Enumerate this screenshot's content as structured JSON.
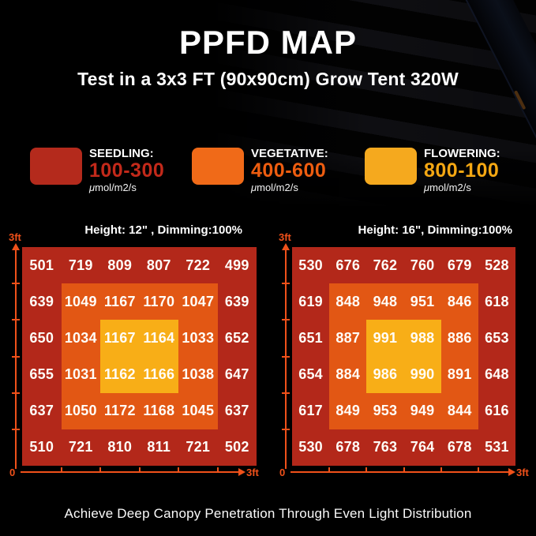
{
  "header": {
    "title": "PPFD MAP",
    "subtitle": "Test in a 3x3 FT (90x90cm) Grow Tent 320W"
  },
  "legend": {
    "items": [
      {
        "name": "SEEDLING:",
        "range": "100-300",
        "unit": "μmol/m2/s",
        "swatch_color": "#B42A1C",
        "range_color": "#C2291A"
      },
      {
        "name": "VEGETATIVE:",
        "range": "400-600",
        "unit": "μmol/m2/s",
        "swatch_color": "#F06A18",
        "range_color": "#EE5D10"
      },
      {
        "name": "FLOWERING:",
        "range": "800-100",
        "unit": "μmol/m2/s",
        "swatch_color": "#F5A91E",
        "range_color": "#F4A713"
      }
    ]
  },
  "chart_data": [
    {
      "type": "heatmap",
      "title": "Height: 12\" , Dimming:100%",
      "x_axis": {
        "origin_label": "0",
        "end_label": "3ft"
      },
      "y_axis": {
        "end_label": "3ft"
      },
      "rows": 6,
      "cols": 6,
      "unit": "μmol/m2/s",
      "values": [
        [
          501,
          719,
          809,
          807,
          722,
          499
        ],
        [
          639,
          1049,
          1167,
          1170,
          1047,
          639
        ],
        [
          650,
          1034,
          1167,
          1164,
          1033,
          652
        ],
        [
          655,
          1031,
          1162,
          1166,
          1038,
          647
        ],
        [
          637,
          1050,
          1172,
          1168,
          1045,
          637
        ],
        [
          510,
          721,
          810,
          811,
          721,
          502
        ]
      ]
    },
    {
      "type": "heatmap",
      "title": "Height: 16\", Dimming:100%",
      "x_axis": {
        "origin_label": "0",
        "end_label": "3ft"
      },
      "y_axis": {
        "end_label": "3ft"
      },
      "rows": 6,
      "cols": 6,
      "unit": "μmol/m2/s",
      "values": [
        [
          530,
          676,
          762,
          760,
          679,
          528
        ],
        [
          619,
          848,
          948,
          951,
          846,
          618
        ],
        [
          651,
          887,
          991,
          988,
          886,
          653
        ],
        [
          654,
          884,
          986,
          990,
          891,
          648
        ],
        [
          617,
          849,
          953,
          949,
          844,
          616
        ],
        [
          530,
          678,
          763,
          764,
          678,
          531
        ]
      ]
    }
  ],
  "colors": {
    "ring_outer": "#B3281A",
    "ring_middle": "#E25714",
    "ring_center": "#F8AE17",
    "axis": "#F0511A",
    "cell_text": "#FFFDF8",
    "background": "#000000"
  },
  "footer": {
    "caption": "Achieve Deep Canopy Penetration Through Even Light Distribution"
  }
}
